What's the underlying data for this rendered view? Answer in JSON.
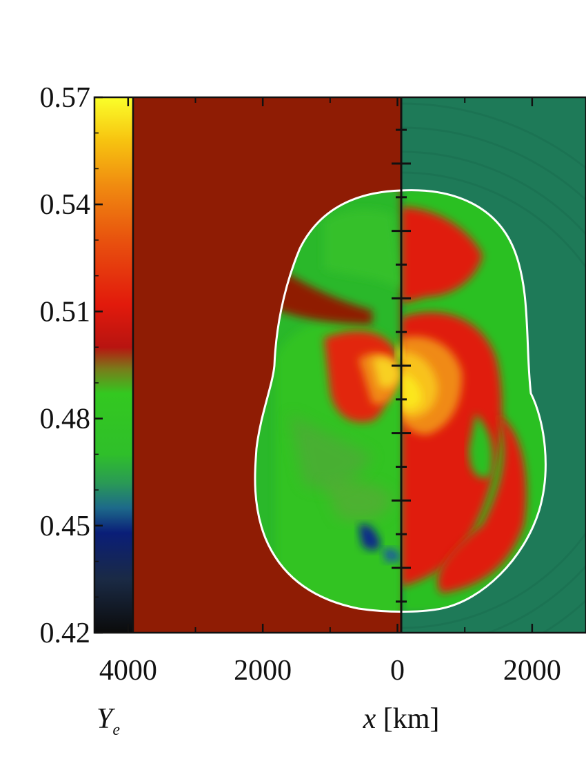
{
  "chart_data": {
    "type": "heatmap",
    "quantity": "Y",
    "quantity_subscript": "e",
    "xlabel_var": "x",
    "xlabel_unit": " [km]",
    "colorbar": {
      "range": [
        0.42,
        0.57
      ],
      "ticks": [
        "0.57",
        "0.54",
        "0.51",
        "0.48",
        "0.45",
        "0.42"
      ],
      "tick_values": [
        0.57,
        0.54,
        0.51,
        0.48,
        0.45,
        0.42
      ],
      "stops": [
        {
          "value": 0.42,
          "color": "#0b0b0b"
        },
        {
          "value": 0.435,
          "color": "#1a2a45"
        },
        {
          "value": 0.448,
          "color": "#0a1e78"
        },
        {
          "value": 0.455,
          "color": "#1d6a8a"
        },
        {
          "value": 0.462,
          "color": "#2a9a55"
        },
        {
          "value": 0.47,
          "color": "#2fbf2a"
        },
        {
          "value": 0.487,
          "color": "#33c820"
        },
        {
          "value": 0.494,
          "color": "#7a7a1a"
        },
        {
          "value": 0.5,
          "color": "#b81410"
        },
        {
          "value": 0.512,
          "color": "#e21a0c"
        },
        {
          "value": 0.53,
          "color": "#e8520e"
        },
        {
          "value": 0.545,
          "color": "#f08a10"
        },
        {
          "value": 0.558,
          "color": "#f7c410"
        },
        {
          "value": 0.57,
          "color": "#fbff2a"
        }
      ]
    },
    "x_ticks": [
      "4000",
      "2000",
      "0",
      "2000"
    ],
    "x_tick_values": [
      -4000,
      -2000,
      0,
      2000
    ],
    "xlim": [
      -4500,
      2800
    ],
    "background_left_color": "#8f1c04",
    "background_right_color": "#1e7a58",
    "shock_color": "#ffffff",
    "colors": {
      "green": "#2cc024",
      "red": "#e01b0c",
      "orange": "#f08a12",
      "yellow": "#fbe61e",
      "blue": "#0a2a8a"
    }
  }
}
